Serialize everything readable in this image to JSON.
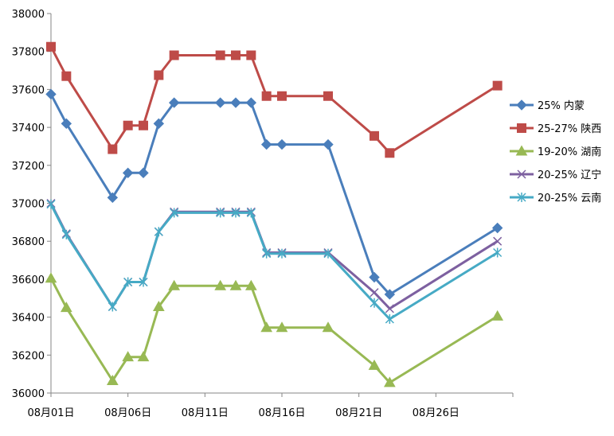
{
  "chart_data": {
    "type": "line",
    "ylim": [
      36000,
      38000
    ],
    "y_ticks": [
      36000,
      36200,
      36400,
      36600,
      36800,
      37000,
      37200,
      37400,
      37600,
      37800,
      38000
    ],
    "x_range": [
      1,
      31
    ],
    "x_ticks": [
      {
        "day": 1,
        "label": "08月01日"
      },
      {
        "day": 6,
        "label": "08月06日"
      },
      {
        "day": 11,
        "label": "08月11日"
      },
      {
        "day": 16,
        "label": "08月16日"
      },
      {
        "day": 21,
        "label": "08月21日"
      },
      {
        "day": 26,
        "label": "08月26日"
      }
    ],
    "grid": false,
    "legend_position": "right",
    "series": [
      {
        "name": "25% 内蒙",
        "color": "#4a7ebb",
        "marker": "diamond",
        "x": [
          1,
          2,
          5,
          6,
          7,
          8,
          9,
          12,
          13,
          14,
          15,
          16,
          19,
          22,
          23,
          30
        ],
        "values": [
          37575,
          37420,
          37030,
          37160,
          37160,
          37420,
          37530,
          37530,
          37530,
          37530,
          37310,
          37310,
          37310,
          36610,
          36520,
          36870
        ]
      },
      {
        "name": "25-27% 陕西",
        "color": "#be4b48",
        "marker": "square",
        "x": [
          1,
          2,
          5,
          6,
          7,
          8,
          9,
          12,
          13,
          14,
          15,
          16,
          19,
          22,
          23,
          30
        ],
        "values": [
          37825,
          37670,
          37285,
          37410,
          37410,
          37675,
          37780,
          37780,
          37780,
          37780,
          37565,
          37565,
          37565,
          37355,
          37265,
          37620
        ]
      },
      {
        "name": "19-20% 湖南",
        "color": "#98b954",
        "marker": "triangle",
        "x": [
          1,
          2,
          5,
          6,
          7,
          8,
          9,
          12,
          13,
          14,
          15,
          16,
          19,
          22,
          23,
          30
        ],
        "values": [
          36605,
          36450,
          36065,
          36190,
          36190,
          36455,
          36565,
          36565,
          36565,
          36565,
          36345,
          36345,
          36345,
          36145,
          36055,
          36405
        ]
      },
      {
        "name": "20-25% 辽宁",
        "color": "#7d60a0",
        "marker": "x",
        "x": [
          1,
          2,
          5,
          6,
          7,
          8,
          9,
          12,
          13,
          14,
          15,
          16,
          19,
          22,
          23,
          30
        ],
        "values": [
          37000,
          36840,
          36455,
          36585,
          36585,
          36850,
          36955,
          36955,
          36955,
          36955,
          36740,
          36740,
          36740,
          36530,
          36445,
          36800
        ]
      },
      {
        "name": "20-25% 云南",
        "color": "#46aac5",
        "marker": "star",
        "x": [
          1,
          2,
          5,
          6,
          7,
          8,
          9,
          12,
          13,
          14,
          15,
          16,
          19,
          22,
          23,
          30
        ],
        "values": [
          36995,
          36835,
          36455,
          36585,
          36585,
          36850,
          36950,
          36950,
          36950,
          36950,
          36735,
          36735,
          36735,
          36475,
          36390,
          36740
        ]
      }
    ]
  }
}
